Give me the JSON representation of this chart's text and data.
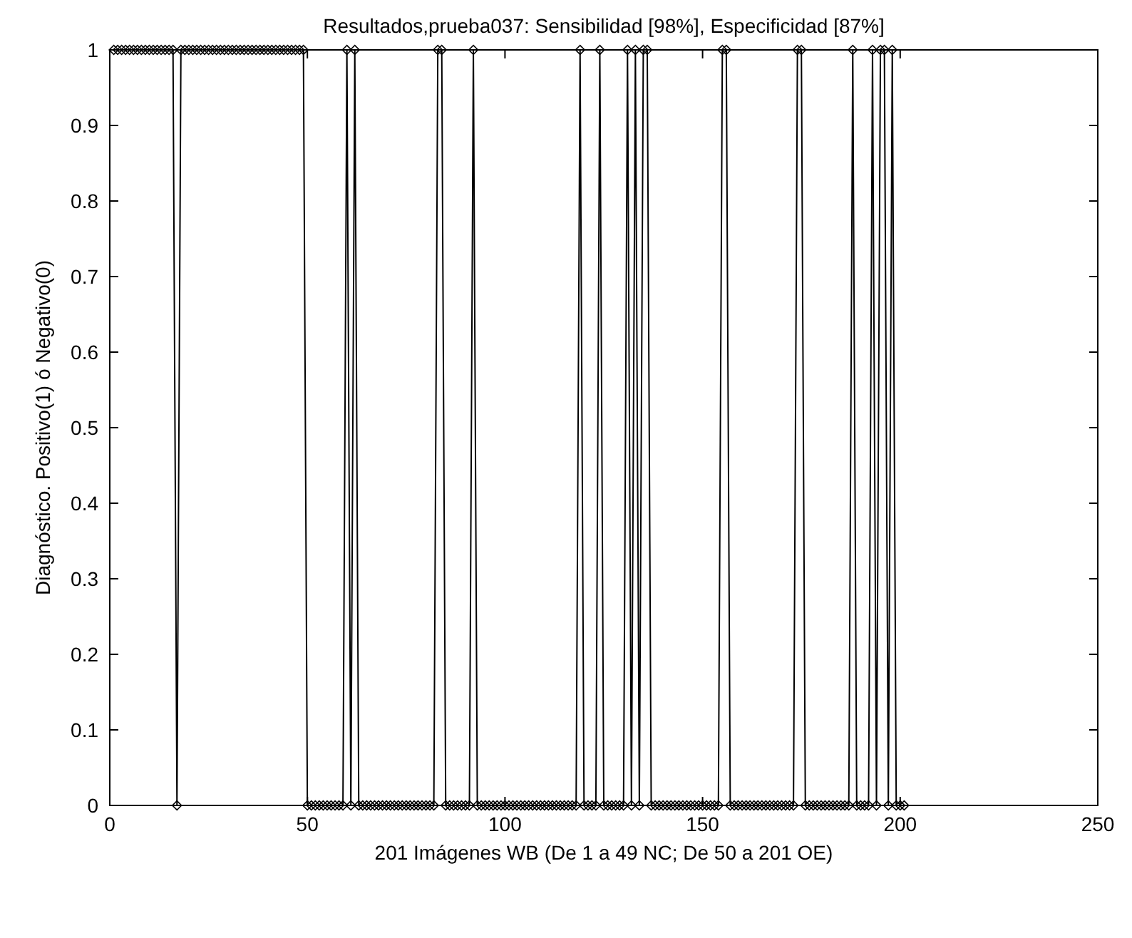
{
  "chart_data": {
    "type": "line",
    "title": "Resultados,prueba037: Sensibilidad [98%], Especificidad [87%]",
    "xlabel": "201 Imágenes WB (De 1 a 49 NC; De 50 a 201 OE)",
    "ylabel": "Diagnóstico. Positivo(1) ó Negativo(0)",
    "x": [
      1,
      2,
      3,
      4,
      5,
      6,
      7,
      8,
      9,
      10,
      11,
      12,
      13,
      14,
      15,
      16,
      17,
      18,
      19,
      20,
      21,
      22,
      23,
      24,
      25,
      26,
      27,
      28,
      29,
      30,
      31,
      32,
      33,
      34,
      35,
      36,
      37,
      38,
      39,
      40,
      41,
      42,
      43,
      44,
      45,
      46,
      47,
      48,
      49,
      50,
      51,
      52,
      53,
      54,
      55,
      56,
      57,
      58,
      59,
      60,
      61,
      62,
      63,
      64,
      65,
      66,
      67,
      68,
      69,
      70,
      71,
      72,
      73,
      74,
      75,
      76,
      77,
      78,
      79,
      80,
      81,
      82,
      83,
      84,
      85,
      86,
      87,
      88,
      89,
      90,
      91,
      92,
      93,
      94,
      95,
      96,
      97,
      98,
      99,
      100,
      101,
      102,
      103,
      104,
      105,
      106,
      107,
      108,
      109,
      110,
      111,
      112,
      113,
      114,
      115,
      116,
      117,
      118,
      119,
      120,
      121,
      122,
      123,
      124,
      125,
      126,
      127,
      128,
      129,
      130,
      131,
      132,
      133,
      134,
      135,
      136,
      137,
      138,
      139,
      140,
      141,
      142,
      143,
      144,
      145,
      146,
      147,
      148,
      149,
      150,
      151,
      152,
      153,
      154,
      155,
      156,
      157,
      158,
      159,
      160,
      161,
      162,
      163,
      164,
      165,
      166,
      167,
      168,
      169,
      170,
      171,
      172,
      173,
      174,
      175,
      176,
      177,
      178,
      179,
      180,
      181,
      182,
      183,
      184,
      185,
      186,
      187,
      188,
      189,
      190,
      191,
      192,
      193,
      194,
      195,
      196,
      197,
      198,
      199,
      200,
      201
    ],
    "series": [
      {
        "color": "#000000",
        "values": [
          1,
          1,
          1,
          1,
          1,
          1,
          1,
          1,
          1,
          1,
          1,
          1,
          1,
          1,
          1,
          1,
          0,
          1,
          1,
          1,
          1,
          1,
          1,
          1,
          1,
          1,
          1,
          1,
          1,
          1,
          1,
          1,
          1,
          1,
          1,
          1,
          1,
          1,
          1,
          1,
          1,
          1,
          1,
          1,
          1,
          1,
          1,
          1,
          1,
          0,
          0,
          0,
          0,
          0,
          0,
          0,
          0,
          0,
          0,
          1,
          0,
          1,
          0,
          0,
          0,
          0,
          0,
          0,
          0,
          0,
          0,
          0,
          0,
          0,
          0,
          0,
          0,
          0,
          0,
          0,
          0,
          0,
          1,
          1,
          0,
          0,
          0,
          0,
          0,
          0,
          0,
          1,
          0,
          0,
          0,
          0,
          0,
          0,
          0,
          0,
          0,
          0,
          0,
          0,
          0,
          0,
          0,
          0,
          0,
          0,
          0,
          0,
          0,
          0,
          0,
          0,
          0,
          0,
          1,
          0,
          0,
          0,
          0,
          1,
          0,
          0,
          0,
          0,
          0,
          0,
          1,
          0,
          1,
          0,
          1,
          1,
          0,
          0,
          0,
          0,
          0,
          0,
          0,
          0,
          0,
          0,
          0,
          0,
          0,
          0,
          0,
          0,
          0,
          0,
          1,
          1,
          0,
          0,
          0,
          0,
          0,
          0,
          0,
          0,
          0,
          0,
          0,
          0,
          0,
          0,
          0,
          0,
          0,
          1,
          1,
          0,
          0,
          0,
          0,
          0,
          0,
          0,
          0,
          0,
          0,
          0,
          0,
          1,
          0,
          0,
          0,
          0,
          1,
          0,
          1,
          1,
          0,
          1,
          0,
          0,
          0
        ]
      }
    ],
    "xlim": [
      0,
      250
    ],
    "xticks": [
      0,
      50,
      100,
      150,
      200,
      250
    ],
    "ylim": [
      0,
      1
    ],
    "yticks": [
      0,
      0.1,
      0.2,
      0.3,
      0.4,
      0.5,
      0.6,
      0.7,
      0.8,
      0.9,
      1
    ],
    "marker": "diamond",
    "line_style": "solid",
    "grid": false
  }
}
